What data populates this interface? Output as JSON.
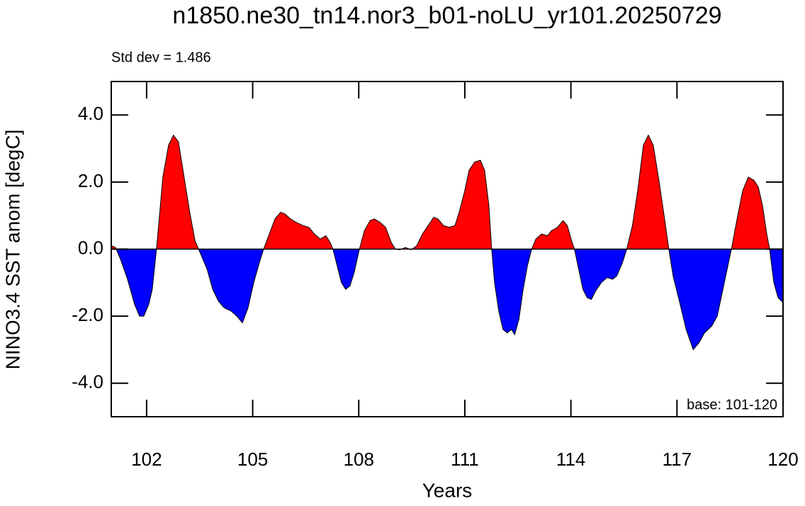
{
  "chart_data": {
    "type": "area",
    "title": "n1850.ne30_tn14.nor3_b01-noLU_yr101.20250729",
    "annotation_left": "Std dev = 1.486",
    "annotation_right": "base: 101-120",
    "xlabel": "Years",
    "ylabel": "NINO3.4 SST anom [degC]",
    "xlim": [
      101,
      120
    ],
    "ylim": [
      -5,
      5
    ],
    "xticks": [
      102,
      105,
      108,
      111,
      114,
      117,
      120
    ],
    "yticks": [
      {
        "value": -4,
        "label": "-4.0"
      },
      {
        "value": -2,
        "label": "-2.0"
      },
      {
        "value": 0,
        "label": "0.0"
      },
      {
        "value": 2,
        "label": "2.0"
      },
      {
        "value": 4,
        "label": "4.0"
      }
    ],
    "reference_line": 0,
    "above_color": "#ff0000",
    "below_color": "#0000ff",
    "line_color": "#000000",
    "x": [
      101.0,
      101.12,
      101.26,
      101.46,
      101.66,
      101.8,
      101.92,
      102.06,
      102.16,
      102.28,
      102.46,
      102.62,
      102.76,
      102.9,
      103.06,
      103.22,
      103.37,
      103.53,
      103.71,
      103.87,
      104.03,
      104.19,
      104.39,
      104.55,
      104.71,
      104.87,
      105.03,
      105.19,
      105.31,
      105.47,
      105.63,
      105.79,
      105.91,
      106.07,
      106.23,
      106.43,
      106.59,
      106.75,
      106.91,
      107.07,
      107.19,
      107.27,
      107.39,
      107.51,
      107.63,
      107.75,
      107.87,
      108.02,
      108.16,
      108.32,
      108.44,
      108.6,
      108.76,
      108.92,
      109.04,
      109.16,
      109.32,
      109.48,
      109.64,
      109.8,
      109.96,
      110.12,
      110.24,
      110.4,
      110.56,
      110.72,
      110.84,
      111.0,
      111.12,
      111.28,
      111.44,
      111.56,
      111.68,
      111.76,
      111.84,
      111.96,
      112.08,
      112.2,
      112.32,
      112.41,
      112.53,
      112.65,
      112.77,
      112.89,
      113.01,
      113.17,
      113.34,
      113.45,
      113.62,
      113.78,
      113.9,
      114.02,
      114.1,
      114.22,
      114.34,
      114.46,
      114.58,
      114.7,
      114.86,
      115.02,
      115.18,
      115.3,
      115.46,
      115.58,
      115.74,
      115.89,
      116.05,
      116.19,
      116.33,
      116.49,
      116.65,
      116.77,
      116.89,
      117.09,
      117.26,
      117.46,
      117.62,
      117.78,
      117.98,
      118.14,
      118.3,
      118.42,
      118.54,
      118.7,
      118.86,
      119.02,
      119.18,
      119.3,
      119.42,
      119.54,
      119.62,
      119.74,
      119.86,
      120.0
    ],
    "values": [
      0.1,
      0.05,
      -0.3,
      -0.9,
      -1.65,
      -2.0,
      -2.0,
      -1.65,
      -1.2,
      0,
      2.15,
      3.1,
      3.4,
      3.2,
      2.15,
      1.1,
      0.25,
      -0.15,
      -0.6,
      -1.2,
      -1.55,
      -1.75,
      -1.85,
      -2.0,
      -2.2,
      -1.75,
      -1.0,
      -0.4,
      0,
      0.45,
      0.9,
      1.1,
      1.05,
      0.9,
      0.8,
      0.7,
      0.65,
      0.45,
      0.3,
      0.4,
      0.2,
      0,
      -0.5,
      -1.0,
      -1.2,
      -1.1,
      -0.7,
      0,
      0.55,
      0.85,
      0.9,
      0.8,
      0.65,
      0.2,
      0,
      -0.02,
      0.05,
      -0.02,
      0.1,
      0.45,
      0.7,
      0.95,
      0.9,
      0.7,
      0.65,
      0.7,
      1.1,
      1.75,
      2.35,
      2.6,
      2.65,
      2.35,
      1.3,
      0,
      -1.0,
      -1.85,
      -2.4,
      -2.5,
      -2.4,
      -2.55,
      -2.1,
      -1.2,
      -0.5,
      0,
      0.3,
      0.45,
      0.4,
      0.55,
      0.65,
      0.85,
      0.7,
      0.25,
      0,
      -0.6,
      -1.2,
      -1.45,
      -1.5,
      -1.25,
      -1.0,
      -0.85,
      -0.9,
      -0.8,
      -0.4,
      0,
      0.7,
      1.75,
      3.1,
      3.4,
      3.1,
      2.05,
      0.9,
      0,
      -0.8,
      -1.65,
      -2.4,
      -3.0,
      -2.8,
      -2.5,
      -2.3,
      -2.0,
      -1.2,
      -0.6,
      0,
      0.9,
      1.75,
      2.15,
      2.05,
      1.85,
      1.3,
      0.45,
      0,
      -1.0,
      -1.45,
      -1.6
    ]
  }
}
